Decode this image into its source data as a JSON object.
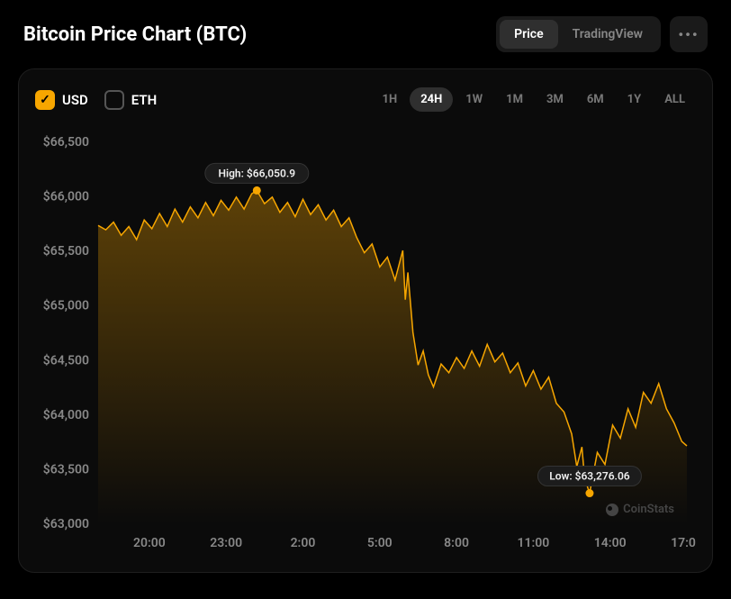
{
  "header": {
    "title": "Bitcoin Price Chart (BTC)",
    "view_tabs": [
      {
        "label": "Price",
        "active": true
      },
      {
        "label": "TradingView",
        "active": false
      }
    ],
    "more_icon": "•••"
  },
  "currencies": [
    {
      "label": "USD",
      "checked": true
    },
    {
      "label": "ETH",
      "checked": false
    }
  ],
  "periods": [
    {
      "label": "1H",
      "active": false
    },
    {
      "label": "24H",
      "active": true
    },
    {
      "label": "1W",
      "active": false
    },
    {
      "label": "1M",
      "active": false
    },
    {
      "label": "3M",
      "active": false
    },
    {
      "label": "6M",
      "active": false
    },
    {
      "label": "1Y",
      "active": false
    },
    {
      "label": "ALL",
      "active": false
    }
  ],
  "watermark": "CoinStats",
  "chart": {
    "type": "area",
    "background_color": "#0b0b0b",
    "line_color": "#f7a600",
    "line_width": 1.5,
    "fill_gradient_top": "rgba(247,166,0,0.35)",
    "fill_gradient_bottom": "rgba(247,166,0,0.0)",
    "marker_color": "#f7a600",
    "x_axis": {
      "min_h": 18,
      "max_h": 41,
      "ticks_h": [
        20,
        23,
        26,
        29,
        32,
        35,
        38,
        41
      ],
      "tick_labels": [
        "20:00",
        "23:00",
        "2:00",
        "5:00",
        "8:00",
        "11:00",
        "14:00",
        "17:00"
      ]
    },
    "y_axis": {
      "min": 63000,
      "max": 66500,
      "tick_step": 500,
      "tick_labels": [
        "$66,500",
        "$66,000",
        "$65,500",
        "$65,000",
        "$64,500",
        "$64,000",
        "$63,500",
        "$63,000"
      ]
    },
    "markers": {
      "high": {
        "x_h": 24.2,
        "value": 66050.9,
        "label": "High: $66,050.9"
      },
      "low": {
        "x_h": 37.2,
        "value": 63276.06,
        "label": "Low: $63,276.06"
      }
    },
    "series": [
      [
        18.0,
        65730
      ],
      [
        18.3,
        65690
      ],
      [
        18.6,
        65760
      ],
      [
        18.9,
        65640
      ],
      [
        19.2,
        65720
      ],
      [
        19.5,
        65600
      ],
      [
        19.8,
        65780
      ],
      [
        20.1,
        65700
      ],
      [
        20.4,
        65840
      ],
      [
        20.7,
        65720
      ],
      [
        21.0,
        65880
      ],
      [
        21.3,
        65760
      ],
      [
        21.6,
        65900
      ],
      [
        21.9,
        65800
      ],
      [
        22.2,
        65940
      ],
      [
        22.5,
        65820
      ],
      [
        22.8,
        65960
      ],
      [
        23.1,
        65870
      ],
      [
        23.4,
        65990
      ],
      [
        23.7,
        65880
      ],
      [
        24.0,
        66020
      ],
      [
        24.2,
        66050.9
      ],
      [
        24.5,
        65930
      ],
      [
        24.8,
        65990
      ],
      [
        25.1,
        65850
      ],
      [
        25.4,
        65940
      ],
      [
        25.7,
        65810
      ],
      [
        26.0,
        65970
      ],
      [
        26.3,
        65830
      ],
      [
        26.6,
        65920
      ],
      [
        26.9,
        65780
      ],
      [
        27.2,
        65870
      ],
      [
        27.5,
        65720
      ],
      [
        27.8,
        65800
      ],
      [
        28.1,
        65620
      ],
      [
        28.4,
        65480
      ],
      [
        28.7,
        65560
      ],
      [
        29.0,
        65350
      ],
      [
        29.3,
        65440
      ],
      [
        29.6,
        65230
      ],
      [
        29.9,
        65500
      ],
      [
        30.0,
        65050
      ],
      [
        30.1,
        65300
      ],
      [
        30.3,
        64750
      ],
      [
        30.5,
        64450
      ],
      [
        30.7,
        64580
      ],
      [
        30.9,
        64360
      ],
      [
        31.1,
        64250
      ],
      [
        31.4,
        64460
      ],
      [
        31.7,
        64380
      ],
      [
        32.0,
        64520
      ],
      [
        32.3,
        64420
      ],
      [
        32.6,
        64580
      ],
      [
        32.9,
        64440
      ],
      [
        33.2,
        64640
      ],
      [
        33.5,
        64480
      ],
      [
        33.8,
        64560
      ],
      [
        34.1,
        64380
      ],
      [
        34.4,
        64470
      ],
      [
        34.7,
        64260
      ],
      [
        35.0,
        64400
      ],
      [
        35.3,
        64230
      ],
      [
        35.6,
        64340
      ],
      [
        35.9,
        64100
      ],
      [
        36.2,
        64020
      ],
      [
        36.5,
        63820
      ],
      [
        36.7,
        63520
      ],
      [
        36.9,
        63700
      ],
      [
        37.0,
        63420
      ],
      [
        37.2,
        63276.06
      ],
      [
        37.5,
        63650
      ],
      [
        37.8,
        63540
      ],
      [
        38.1,
        63900
      ],
      [
        38.4,
        63780
      ],
      [
        38.7,
        64050
      ],
      [
        39.0,
        63880
      ],
      [
        39.3,
        64200
      ],
      [
        39.6,
        64100
      ],
      [
        39.9,
        64280
      ],
      [
        40.2,
        64050
      ],
      [
        40.5,
        63920
      ],
      [
        40.8,
        63750
      ],
      [
        41.0,
        63710
      ]
    ]
  }
}
